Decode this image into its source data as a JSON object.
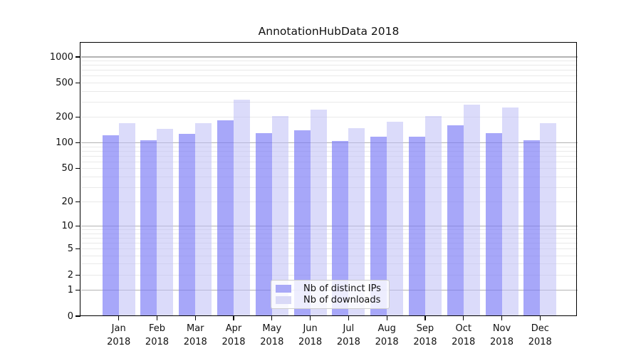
{
  "title": "AnnotationHubData 2018",
  "chart_data": {
    "type": "bar",
    "title": "AnnotationHubData 2018",
    "x_categories": [
      "Jan",
      "Feb",
      "Mar",
      "Apr",
      "May",
      "Jun",
      "Jul",
      "Aug",
      "Sep",
      "Oct",
      "Nov",
      "Dec"
    ],
    "x_year": "2018",
    "y_scale": "log10(1+x)",
    "ylim": [
      0,
      1500
    ],
    "y_ticks": [
      1000,
      500,
      200,
      100,
      50,
      20,
      10,
      5,
      2,
      1,
      0
    ],
    "y_major_gridlines": [
      1,
      10,
      100,
      1000
    ],
    "y_minor_gridlines": [
      2,
      3,
      4,
      5,
      6,
      7,
      8,
      9,
      20,
      30,
      40,
      50,
      60,
      70,
      80,
      90,
      200,
      300,
      400,
      500,
      600,
      700,
      800,
      900
    ],
    "grid": "on",
    "legend_position": "bottom-center-inside",
    "series": [
      {
        "name": "Nb of distinct IPs",
        "fill": "rgba(121,121,246,0.66)",
        "swatch": "#a9a9f7",
        "values": [
          124,
          108,
          127,
          185,
          131,
          142,
          105,
          119,
          119,
          161,
          131,
          108
        ]
      },
      {
        "name": "Nb of downloads",
        "fill": "rgba(190,190,245,0.55)",
        "swatch": "#d9d9f7",
        "values": [
          170,
          147,
          171,
          322,
          205,
          245,
          150,
          177,
          205,
          280,
          260,
          169
        ]
      }
    ],
    "colors": {
      "major_grid": "#b3b3b3",
      "minor_grid": "#e9e9e9",
      "axis": "#000000",
      "text": "#111111",
      "background": "#ffffff"
    }
  }
}
